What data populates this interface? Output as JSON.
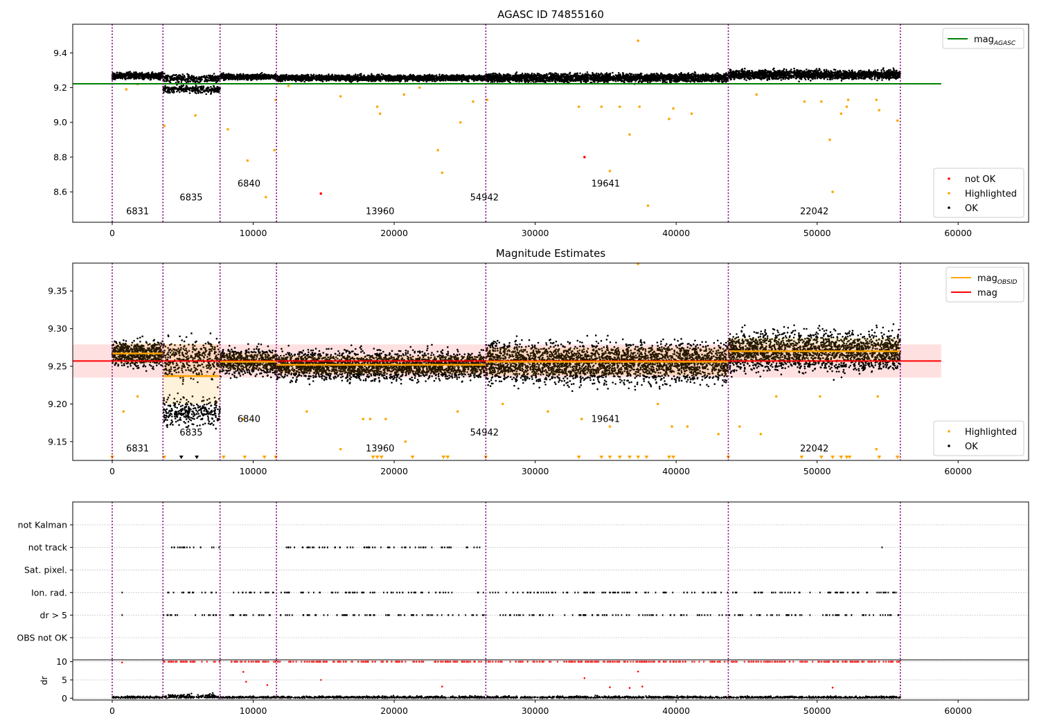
{
  "chart_data": [
    {
      "id": "agasc",
      "type": "scatter",
      "title": "AGASC ID 74855160",
      "xlim": [
        -2800,
        65000
      ],
      "ylim": [
        8.425,
        9.565
      ],
      "xticks": [
        0,
        10000,
        20000,
        30000,
        40000,
        50000,
        60000
      ],
      "yticks": [
        8.6,
        8.8,
        9.0,
        9.2,
        9.4
      ],
      "ytick_decimals": 1,
      "obs_boundaries": [
        0,
        3600,
        7650,
        11650,
        26500,
        43700,
        55900
      ],
      "obs_labels": [
        {
          "text": "6831",
          "x": 1800,
          "y": 8.47
        },
        {
          "text": "6835",
          "x": 5600,
          "y": 8.55
        },
        {
          "text": "6840",
          "x": 9700,
          "y": 8.63
        },
        {
          "text": "13960",
          "x": 19000,
          "y": 8.47
        },
        {
          "text": "54942",
          "x": 26400,
          "y": 8.55
        },
        {
          "text": "19641",
          "x": 35000,
          "y": 8.63
        },
        {
          "text": "22042",
          "x": 49800,
          "y": 8.47
        }
      ],
      "ref_line": {
        "name": "mag",
        "sub": "AGASC",
        "y": 9.222,
        "x": [
          -2800,
          58800
        ],
        "color": "#008000"
      },
      "bands": [
        {
          "x": [
            0,
            3600
          ],
          "center": 9.268,
          "spread": 0.013
        },
        {
          "x": [
            3600,
            7650
          ],
          "center": 9.253,
          "spread": 0.015,
          "dip": 9.19,
          "dip_spread": 0.015
        },
        {
          "x": [
            7650,
            11650
          ],
          "center": 9.262,
          "spread": 0.011
        },
        {
          "x": [
            11650,
            26500
          ],
          "center": 9.256,
          "spread": 0.012
        },
        {
          "x": [
            26500,
            43700
          ],
          "center": 9.257,
          "spread": 0.017
        },
        {
          "x": [
            43700,
            55900
          ],
          "center": 9.275,
          "spread": 0.018
        }
      ],
      "highlighted": [
        [
          1000,
          9.19
        ],
        [
          1800,
          9.22
        ],
        [
          3700,
          8.98
        ],
        [
          5900,
          9.04
        ],
        [
          8200,
          8.96
        ],
        [
          9600,
          8.78
        ],
        [
          10900,
          8.57
        ],
        [
          11500,
          8.84
        ],
        [
          11600,
          9.13
        ],
        [
          12500,
          9.21
        ],
        [
          16200,
          9.15
        ],
        [
          18800,
          9.09
        ],
        [
          19000,
          9.05
        ],
        [
          20700,
          9.16
        ],
        [
          21800,
          9.2
        ],
        [
          23100,
          8.84
        ],
        [
          23400,
          8.71
        ],
        [
          24700,
          9.0
        ],
        [
          25600,
          9.12
        ],
        [
          26600,
          9.13
        ],
        [
          33100,
          9.09
        ],
        [
          34700,
          9.09
        ],
        [
          35300,
          8.72
        ],
        [
          36000,
          9.09
        ],
        [
          36700,
          8.93
        ],
        [
          37300,
          9.47
        ],
        [
          37400,
          9.09
        ],
        [
          38000,
          8.52
        ],
        [
          39500,
          9.02
        ],
        [
          39800,
          9.08
        ],
        [
          41100,
          9.05
        ],
        [
          45700,
          9.16
        ],
        [
          49100,
          9.12
        ],
        [
          50300,
          9.12
        ],
        [
          50900,
          8.9
        ],
        [
          51100,
          8.6
        ],
        [
          51700,
          9.05
        ],
        [
          52100,
          9.09
        ],
        [
          52200,
          9.13
        ],
        [
          54200,
          9.13
        ],
        [
          54400,
          9.07
        ],
        [
          55700,
          9.01
        ]
      ],
      "not_ok": [
        [
          14800,
          8.59
        ],
        [
          33500,
          8.8
        ]
      ],
      "legends": [
        {
          "pos": "top-right",
          "items": [
            {
              "label": "mag",
              "sub": "AGASC",
              "kind": "line",
              "color": "#008000"
            }
          ]
        },
        {
          "pos": "bottom-right",
          "items": [
            {
              "label": "not OK",
              "kind": "dot",
              "color": "#ff0000"
            },
            {
              "label": "Highlighted",
              "kind": "dot",
              "color": "#ffa500"
            },
            {
              "label": "OK",
              "kind": "dot",
              "color": "#000000"
            }
          ]
        }
      ]
    },
    {
      "id": "estimates",
      "type": "scatter",
      "title": "Magnitude Estimates",
      "xlim": [
        -2800,
        65000
      ],
      "ylim": [
        9.125,
        9.387
      ],
      "xticks": [
        0,
        10000,
        20000,
        30000,
        40000,
        50000,
        60000
      ],
      "yticks": [
        9.15,
        9.2,
        9.25,
        9.3,
        9.35
      ],
      "ytick_decimals": 2,
      "obs_boundaries": [
        0,
        3600,
        7650,
        11650,
        26500,
        43700,
        55900
      ],
      "obs_labels": [
        {
          "text": "6831",
          "x": 1800,
          "y": 9.137
        },
        {
          "text": "6835",
          "x": 5600,
          "y": 9.158
        },
        {
          "text": "6840",
          "x": 9700,
          "y": 9.176
        },
        {
          "text": "13960",
          "x": 19000,
          "y": 9.137
        },
        {
          "text": "54942",
          "x": 26400,
          "y": 9.158
        },
        {
          "text": "19641",
          "x": 35000,
          "y": 9.176
        },
        {
          "text": "22042",
          "x": 49800,
          "y": 9.137
        }
      ],
      "mean_line": {
        "name": "mag",
        "y": 9.257,
        "band": [
          9.235,
          9.279
        ],
        "x": [
          -2800,
          58800
        ],
        "color": "#ff0000"
      },
      "obsid_means": [
        {
          "x": [
            0,
            3600
          ],
          "y": 9.267,
          "band": [
            9.254,
            9.281
          ]
        },
        {
          "x": [
            3600,
            7650
          ],
          "y": 9.237,
          "band": [
            9.2,
            9.28
          ]
        },
        {
          "x": [
            7650,
            11650
          ],
          "y": 9.256,
          "band": [
            9.245,
            9.268
          ]
        },
        {
          "x": [
            11650,
            26500
          ],
          "y": 9.252,
          "band": [
            9.24,
            9.264
          ]
        },
        {
          "x": [
            26500,
            43700
          ],
          "y": 9.256,
          "band": [
            9.238,
            9.275
          ]
        },
        {
          "x": [
            43700,
            55900
          ],
          "y": 9.27,
          "band": [
            9.255,
            9.288
          ]
        }
      ],
      "bands": [
        {
          "x": [
            0,
            3600
          ],
          "center": 9.267,
          "spread": 0.012
        },
        {
          "x": [
            3600,
            7650
          ],
          "center": 9.26,
          "spread": 0.018,
          "dip": 9.19,
          "dip_spread": 0.014
        },
        {
          "x": [
            7650,
            11650
          ],
          "center": 9.256,
          "spread": 0.012
        },
        {
          "x": [
            11650,
            26500
          ],
          "center": 9.251,
          "spread": 0.013
        },
        {
          "x": [
            26500,
            43700
          ],
          "center": 9.255,
          "spread": 0.019
        },
        {
          "x": [
            43700,
            55900
          ],
          "center": 9.27,
          "spread": 0.018
        }
      ],
      "highlighted": [
        [
          800,
          9.19
        ],
        [
          1800,
          9.21
        ],
        [
          9300,
          9.18
        ],
        [
          13800,
          9.19
        ],
        [
          16200,
          9.14
        ],
        [
          17800,
          9.18
        ],
        [
          18300,
          9.18
        ],
        [
          19400,
          9.18
        ],
        [
          20800,
          9.15
        ],
        [
          24500,
          9.19
        ],
        [
          27700,
          9.2
        ],
        [
          30900,
          9.19
        ],
        [
          33300,
          9.18
        ],
        [
          35300,
          9.17
        ],
        [
          37300,
          9.386
        ],
        [
          38700,
          9.2
        ],
        [
          39700,
          9.17
        ],
        [
          40800,
          9.17
        ],
        [
          43000,
          9.16
        ],
        [
          44500,
          9.17
        ],
        [
          46000,
          9.16
        ],
        [
          47100,
          9.21
        ],
        [
          50200,
          9.21
        ],
        [
          54300,
          9.21
        ],
        [
          54200,
          9.14
        ]
      ],
      "triangles_low": [
        0,
        3700,
        7900,
        9400,
        10800,
        11600,
        18500,
        18800,
        19100,
        21300,
        23500,
        23800,
        26500,
        33100,
        34700,
        35300,
        36000,
        36700,
        37300,
        37900,
        39500,
        39800,
        43700,
        48900,
        50300,
        51100,
        51700,
        52100,
        52300,
        54400,
        55700
      ],
      "triangles_low_black": [
        4900,
        6000
      ],
      "legends": [
        {
          "pos": "top-right",
          "items": [
            {
              "label": "mag",
              "sub": "OBSID",
              "kind": "line",
              "color": "#ffa500"
            },
            {
              "label": "mag",
              "kind": "line",
              "color": "#ff0000"
            }
          ]
        },
        {
          "pos": "bottom-right",
          "items": [
            {
              "label": "Highlighted",
              "kind": "dot",
              "color": "#ffa500"
            },
            {
              "label": "OK",
              "kind": "dot",
              "color": "#000000"
            }
          ]
        }
      ]
    },
    {
      "id": "flags",
      "type": "scatter",
      "xlim": [
        -2800,
        65000
      ],
      "categories": [
        "not Kalman",
        "not track",
        "Sat. pixel.",
        "Ion. rad.",
        "dr > 5",
        "OBS not OK"
      ],
      "grid": true,
      "obs_boundaries": [
        0,
        3600,
        7650,
        11650,
        26500,
        43700,
        55900
      ],
      "flag_rows": {
        "not track": {
          "ranges": [
            [
              3900,
              7650
            ],
            [
              11700,
              26500
            ]
          ],
          "extra": [
            54600
          ]
        },
        "Ion. rad.": {
          "ranges": [
            [
              3600,
              7650
            ],
            [
              8200,
              11650
            ],
            [
              11700,
              26500
            ],
            [
              26500,
              43700
            ],
            [
              43700,
              55900
            ]
          ],
          "extra": [
            700
          ]
        },
        "dr > 5": {
          "ranges": [
            [
              3600,
              7650
            ],
            [
              8200,
              11650
            ],
            [
              11700,
              26500
            ],
            [
              26500,
              43700
            ],
            [
              43700,
              55900
            ]
          ],
          "extra": [
            700
          ]
        }
      }
    },
    {
      "id": "dr",
      "type": "scatter",
      "ylabel": "dr",
      "xlim": [
        -2800,
        65000
      ],
      "ylim": [
        -0.5,
        10.5
      ],
      "xticks": [
        0,
        10000,
        20000,
        30000,
        40000,
        50000,
        60000
      ],
      "yticks": [
        0,
        5,
        10
      ],
      "ytick_decimals": 0,
      "obs_boundaries": [
        0,
        3600,
        7650,
        11650,
        26500,
        43700,
        55900
      ],
      "clipped_at": 10,
      "red_points": [
        [
          700,
          9.8
        ],
        [
          9300,
          7.2
        ],
        [
          9500,
          4.5
        ],
        [
          11000,
          3.6
        ],
        [
          14800,
          5.0
        ],
        [
          23400,
          3.2
        ],
        [
          33500,
          5.5
        ],
        [
          35300,
          3.0
        ],
        [
          36700,
          2.8
        ],
        [
          37300,
          7.3
        ],
        [
          37600,
          3.2
        ],
        [
          51100,
          2.9
        ]
      ],
      "red_ranges": [
        [
          3600,
          7650
        ],
        [
          8200,
          11650
        ],
        [
          11700,
          26500
        ],
        [
          26500,
          43700
        ],
        [
          43700,
          55900
        ]
      ]
    }
  ]
}
